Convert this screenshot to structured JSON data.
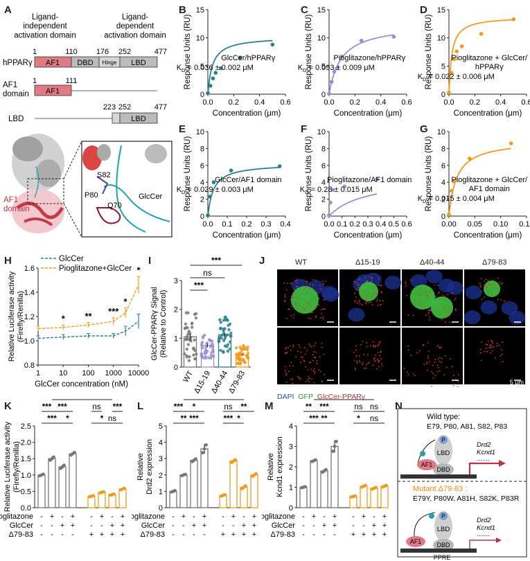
{
  "panel_letters": [
    "A",
    "B",
    "C",
    "D",
    "E",
    "F",
    "G",
    "H",
    "I",
    "J",
    "K",
    "L",
    "M",
    "N"
  ],
  "panel_a": {
    "ligand_independent": "Ligand-\nindependent\nactivation domain",
    "ligand_dependent": "Ligand-\ndependent\nactivation domain",
    "rows": [
      {
        "label": "hPPARγ",
        "nums": [
          "1",
          "110",
          "176",
          "252",
          "477"
        ],
        "segments": [
          "AF1",
          "DBD",
          "Hinge",
          "LBD"
        ]
      },
      {
        "label": "AF1\ndomain",
        "nums": [
          "1",
          "111"
        ],
        "segments": [
          "AF1"
        ]
      },
      {
        "label": "LBD",
        "nums": [
          "223",
          "252",
          "477"
        ],
        "segments": [
          "LBD"
        ]
      }
    ],
    "structure_labels": {
      "af1": "AF1\ndomain",
      "s82": "S82",
      "p80": "P80",
      "q70": "Q70",
      "glccer": "GlcCer"
    }
  },
  "colors": {
    "teal": "#2a7f8f",
    "purple": "#9b8fd0",
    "orange": "#f29a1d",
    "grey": "#777777",
    "red_box": "#e07a84"
  },
  "chart_data": [
    {
      "id": "B",
      "type": "scatter",
      "color": "#2a7f8f",
      "xlabel": "Concentration (μm)",
      "ylabel": "Response Units (RU)",
      "xlim": [
        0,
        0.6
      ],
      "ylim": [
        0,
        15
      ],
      "xticks": [
        "0.0",
        "0.2",
        "0.4",
        "0.6"
      ],
      "yticks": [
        "0",
        "5",
        "10",
        "15"
      ],
      "x": [
        0.0,
        0.02,
        0.04,
        0.06,
        0.1,
        0.25,
        0.5
      ],
      "y": [
        0.2,
        1.5,
        2.8,
        3.8,
        4.6,
        6.5,
        8.8
      ],
      "fit_kd": 0.036,
      "fit_bmax": 10.2,
      "annotation": [
        "GlcCer/hPPARγ",
        "K",
        "D",
        " = 0.036 ± 0.002 μM"
      ],
      "ann_pos": "center-right"
    },
    {
      "id": "C",
      "type": "scatter",
      "color": "#9b8fd0",
      "xlabel": "Concentration (μm)",
      "ylabel": "Response Units (RU)",
      "xlim": [
        0,
        0.6
      ],
      "ylim": [
        0,
        15
      ],
      "xticks": [
        "0.0",
        "0.2",
        "0.4",
        "0.6"
      ],
      "yticks": [
        "0",
        "5",
        "10",
        "15"
      ],
      "x": [
        0.0,
        0.02,
        0.04,
        0.06,
        0.1,
        0.25,
        0.5
      ],
      "y": [
        0.1,
        2.2,
        4.0,
        4.6,
        6.7,
        9.5,
        10.2
      ],
      "fit_kd": 0.093,
      "fit_bmax": 12.5,
      "annotation": [
        "Pioglitazone/hPPARγ",
        "K",
        "D",
        " = 0.093 ± 0.009 μM"
      ],
      "ann_pos": "center-right"
    },
    {
      "id": "D",
      "type": "scatter",
      "color": "#f29a1d",
      "xlabel": "Concentration (μm)",
      "ylabel": "Response Units (RU)",
      "xlim": [
        0,
        0.6
      ],
      "ylim": [
        0,
        15
      ],
      "xticks": [
        "0.0",
        "0.2",
        "0.4",
        "0.6"
      ],
      "yticks": [
        "0",
        "5",
        "10",
        "15"
      ],
      "x": [
        0.0,
        0.02,
        0.04,
        0.06,
        0.1,
        0.25,
        0.5
      ],
      "y": [
        0.3,
        3.8,
        6.2,
        7.6,
        8.5,
        10.7,
        13.3
      ],
      "fit_kd": 0.022,
      "fit_bmax": 13.8,
      "annotation": [
        "Pioglitazone + GlcCer/",
        "hPPARγ",
        "K",
        "D",
        " = 0.022 ± 0.006 μM"
      ],
      "ann_pos": "center-right"
    },
    {
      "id": "E",
      "type": "scatter",
      "color": "#2a7f8f",
      "xlabel": "Concentration (μm)",
      "ylabel": "Response Units (RU)",
      "xlim": [
        0,
        0.4
      ],
      "ylim": [
        0,
        10
      ],
      "xticks": [
        "0.0",
        "0.1",
        "0.2",
        "0.3",
        "0.4"
      ],
      "yticks": [
        "0",
        "2",
        "4",
        "6",
        "8",
        "10"
      ],
      "x": [
        0.0,
        0.01,
        0.03,
        0.12,
        0.37
      ],
      "y": [
        0.1,
        2.3,
        4.0,
        5.4,
        5.9
      ],
      "fit_kd": 0.029,
      "fit_bmax": 6.2,
      "annotation": [
        "GlcCer/AF1 domain",
        "K",
        "D",
        " = 0.029 ± 0.003 μM"
      ],
      "ann_pos": "center-right"
    },
    {
      "id": "F",
      "type": "scatter",
      "color": "#9b8fd0",
      "xlabel": "Concentration (μm)",
      "ylabel": "Response Units (RU)",
      "xlim": [
        0,
        0.6
      ],
      "ylim": [
        0,
        10
      ],
      "xticks": [
        "0.0",
        "0.1",
        "0.2",
        "0.3",
        "0.4",
        "0.5",
        "0.6"
      ],
      "yticks": [
        "0",
        "2",
        "4",
        "6",
        "8",
        "10"
      ],
      "x": [
        0.0,
        0.01,
        0.03,
        0.12,
        0.37
      ],
      "y": [
        0.1,
        1.6,
        3.1,
        3.5,
        4.4
      ],
      "fit_kd": 0.28,
      "fit_bmax": 4.6,
      "annotation": [
        "Pioglitazone/AF1 domain",
        "K",
        "D",
        " = 0.28 ± 0.015 μM"
      ],
      "ann_pos": "center-right"
    },
    {
      "id": "G",
      "type": "scatter",
      "color": "#f29a1d",
      "xlabel": "Concentration (μm)",
      "ylabel": "Response Units (RU)",
      "xlim": [
        0,
        0.15
      ],
      "ylim": [
        0,
        10
      ],
      "xticks": [
        "0.00",
        "0.05",
        "0.10",
        "0.15"
      ],
      "yticks": [
        "0",
        "2",
        "4",
        "6",
        "8",
        "10"
      ],
      "x": [
        0.0,
        0.005,
        0.01,
        0.04,
        0.12
      ],
      "y": [
        0.2,
        3.0,
        4.1,
        6.8,
        8.6
      ],
      "fit_kd": 0.015,
      "fit_bmax": 9.0,
      "annotation": [
        "Pioglitazone + GlcCer/",
        "AF1 domain",
        "K",
        "D",
        " = 0.015 ± 0.004 μM"
      ],
      "ann_pos": "center-right"
    },
    {
      "id": "H",
      "type": "line",
      "xlabel": "GlcCer concentration (nM)",
      "ylabel": "Relative Luciferase activity\n(Firefly/Renilla)",
      "xscale": "log",
      "xlim": [
        1,
        10000
      ],
      "ylim": [
        0.8,
        1.6
      ],
      "xticks": [
        "1",
        "10",
        "100",
        "1000",
        "10000"
      ],
      "yticks": [
        "0.8",
        "1.0",
        "1.2",
        "1.4",
        "1.6"
      ],
      "x": [
        1,
        10,
        100,
        1000,
        3000,
        10000
      ],
      "series": [
        {
          "name": "GlcCer",
          "color": "#2a7f8f",
          "values": [
            1.02,
            1.03,
            1.04,
            1.04,
            1.08,
            1.16
          ],
          "err": [
            0.02,
            0.02,
            0.02,
            0.02,
            0.04,
            0.06
          ]
        },
        {
          "name": "Pioglitazone+GlcCer",
          "color": "#f29a1d",
          "values": [
            1.1,
            1.11,
            1.13,
            1.16,
            1.23,
            1.46
          ],
          "err": [
            0.02,
            0.02,
            0.02,
            0.03,
            0.04,
            0.07
          ]
        }
      ],
      "stars": [
        {
          "x": 10,
          "label": "*"
        },
        {
          "x": 100,
          "label": "**"
        },
        {
          "x": 1000,
          "label": "***"
        },
        {
          "x": 3000,
          "label": "*"
        },
        {
          "x": 10000,
          "label": "*"
        }
      ],
      "legend": "top-left"
    },
    {
      "id": "I",
      "type": "bar",
      "ylabel": "GlcCer-PPARγ Signal\n(Relative to Control)",
      "categories": [
        "WT",
        "Δ15-19",
        "Δ40-44",
        "Δ79-83"
      ],
      "values": [
        1.05,
        0.75,
        1.12,
        0.42
      ],
      "err": [
        0.1,
        0.06,
        0.06,
        0.03
      ],
      "bar_colors": [
        "#777777",
        "#9b8fd0",
        "#2a7f8f",
        "#f29a1d"
      ],
      "ylim": [
        0,
        3
      ],
      "yticks": [
        "0",
        "1",
        "2",
        "3"
      ],
      "brackets": [
        {
          "a": 0,
          "b": 3,
          "label": "***"
        },
        {
          "a": 0,
          "b": 2,
          "label": "ns"
        },
        {
          "a": 0,
          "b": 1,
          "label": "***"
        }
      ]
    },
    {
      "id": "K",
      "type": "bar",
      "ylabel": "Relative Luciferase activity\n(Firefly/Renilla)",
      "ylim": [
        0,
        2.5
      ],
      "yticks": [
        "0.0",
        "0.5",
        "1.0",
        "1.5",
        "2.0",
        "2.5"
      ],
      "values": [
        1.0,
        1.5,
        1.25,
        1.65,
        0.35,
        0.47,
        0.4,
        0.57
      ],
      "err": [
        0.03,
        0.06,
        0.06,
        0.05,
        0.02,
        0.02,
        0.02,
        0.03
      ],
      "brackets": [
        {
          "a": 0,
          "b": 2,
          "label": "***",
          "lvl": 0
        },
        {
          "a": 2,
          "b": 3,
          "label": "*",
          "lvl": 0
        },
        {
          "a": 0,
          "b": 1,
          "label": "***",
          "lvl": 1
        },
        {
          "a": 1,
          "b": 3,
          "label": "***",
          "lvl": 1
        },
        {
          "a": 1,
          "b": 6,
          "label": "***",
          "lvl": 2
        },
        {
          "a": 4,
          "b": 6,
          "label": "*",
          "lvl": 0
        },
        {
          "a": 6,
          "b": 7,
          "label": "***",
          "lvl": 1
        },
        {
          "a": 4,
          "b": 5,
          "label": "ns",
          "lvl": 1
        },
        {
          "a": 5,
          "b": 7,
          "label": "ns",
          "lvl": 0
        }
      ],
      "rows": [
        {
          "name": "Pioglitazone",
          "signs": [
            "-",
            "+",
            "-",
            "+",
            "-",
            "+",
            "-",
            "+"
          ]
        },
        {
          "name": "GlcCer",
          "signs": [
            "-",
            "-",
            "+",
            "+",
            "-",
            "-",
            "+",
            "+"
          ]
        },
        {
          "name": "Δ79-83",
          "signs": [
            "-",
            "-",
            "-",
            "-",
            "+",
            "+",
            "+",
            "+"
          ]
        }
      ]
    },
    {
      "id": "L",
      "type": "bar",
      "ylabel": "Relative\nDrd2 expression",
      "ylim": [
        0,
        5
      ],
      "yticks": [
        "0",
        "1",
        "2",
        "3",
        "4",
        "5"
      ],
      "values": [
        1.0,
        2.0,
        2.9,
        3.6,
        0.75,
        2.85,
        1.25,
        2.0
      ],
      "err": [
        0.05,
        0.05,
        0.1,
        0.3,
        0.05,
        0.1,
        0.1,
        0.1
      ],
      "brackets": [
        {
          "a": 0,
          "b": 2,
          "label": "**",
          "lvl": 0
        },
        {
          "a": 1,
          "b": 3,
          "label": "***",
          "lvl": 0
        },
        {
          "a": 0,
          "b": 1,
          "label": "***",
          "lvl": 1
        },
        {
          "a": 1,
          "b": 3,
          "label": "*",
          "lvl": 1
        },
        {
          "a": 1,
          "b": 6,
          "label": "***",
          "lvl": 2
        },
        {
          "a": 4,
          "b": 5,
          "label": "***",
          "lvl": 0
        },
        {
          "a": 5,
          "b": 6,
          "label": "*",
          "lvl": 0
        },
        {
          "a": 4,
          "b": 5,
          "label": "ns",
          "lvl": 1
        },
        {
          "a": 5,
          "b": 7,
          "label": "**",
          "lvl": 1
        }
      ],
      "rows": [
        {
          "name": "Pioglitazone",
          "signs": [
            "-",
            "+",
            "-",
            "+",
            "-",
            "+",
            "-",
            "+"
          ]
        },
        {
          "name": "GlcCer",
          "signs": [
            "-",
            "-",
            "+",
            "+",
            "-",
            "-",
            "+",
            "+"
          ]
        },
        {
          "name": "Δ79-83",
          "signs": [
            "-",
            "-",
            "-",
            "-",
            "+",
            "+",
            "+",
            "+"
          ]
        }
      ]
    },
    {
      "id": "M",
      "type": "bar",
      "ylabel": "Relative\nKcnd1 expression",
      "ylim": [
        0,
        4
      ],
      "yticks": [
        "0",
        "1",
        "2",
        "3",
        "4"
      ],
      "values": [
        1.0,
        2.3,
        1.8,
        3.0,
        0.55,
        1.05,
        0.95,
        1.05
      ],
      "err": [
        0.03,
        0.05,
        0.08,
        0.3,
        0.03,
        0.05,
        0.05,
        0.05
      ],
      "brackets": [
        {
          "a": 0,
          "b": 2,
          "label": "***",
          "lvl": 0
        },
        {
          "a": 1,
          "b": 3,
          "label": "**",
          "lvl": 0
        },
        {
          "a": 0,
          "b": 1,
          "label": "**",
          "lvl": 1
        },
        {
          "a": 1,
          "b": 3,
          "label": "***",
          "lvl": 1
        },
        {
          "a": 1,
          "b": 6,
          "label": "***",
          "lvl": 2
        },
        {
          "a": 4,
          "b": 5,
          "label": "*",
          "lvl": 0
        },
        {
          "a": 5,
          "b": 7,
          "label": "ns",
          "lvl": 0
        },
        {
          "a": 4,
          "b": 5,
          "label": "ns",
          "lvl": 1
        },
        {
          "a": 5,
          "b": 7,
          "label": "ns",
          "lvl": 1
        }
      ],
      "rows": [
        {
          "name": "Pioglitazone",
          "signs": [
            "-",
            "+",
            "-",
            "+",
            "-",
            "+",
            "-",
            "+"
          ]
        },
        {
          "name": "GlcCer",
          "signs": [
            "-",
            "-",
            "+",
            "+",
            "-",
            "-",
            "+",
            "+"
          ]
        },
        {
          "name": "Δ79-83",
          "signs": [
            "-",
            "-",
            "-",
            "-",
            "+",
            "+",
            "+",
            "+"
          ]
        }
      ]
    }
  ],
  "panel_j": {
    "columns": [
      "WT",
      "Δ15-19",
      "Δ40-44",
      "Δ79-83"
    ],
    "legend": [
      "DAPI",
      "GFP",
      "GlcCer-PPARγ"
    ],
    "scale": "5 μm"
  },
  "panel_n": {
    "wild_title": "Wild type:",
    "wild_residues": "E79, P80, A81, S82, P83",
    "mutant_title": "Mutant Δ79-83 :",
    "mutant_residues": "E79Y, P80W, A81H, S82K, P83R",
    "genes": [
      "Drd2",
      "Kcnd1"
    ],
    "dots": ".......",
    "ppre": "PPRE",
    "labels": {
      "af1": "AF1",
      "lbd": "LBD",
      "dbd": "DBD",
      "p": "P"
    }
  }
}
